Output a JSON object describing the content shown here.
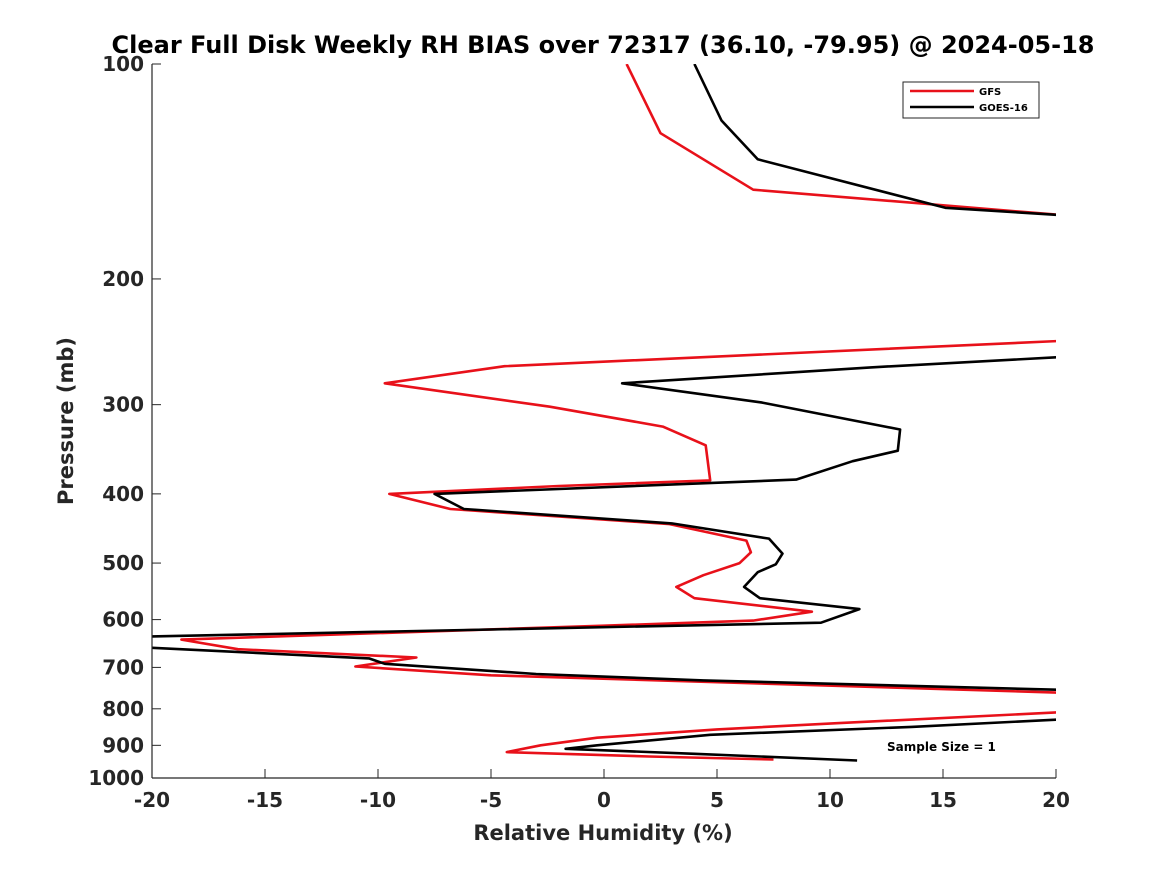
{
  "chart_data": {
    "type": "line",
    "title": "Clear Full Disk Weekly RH BIAS over 72317 (36.10, -79.95) @ 2024-05-18",
    "xlabel": "Relative Humidity (%)",
    "ylabel": "Pressure (mb)",
    "xlim": [
      -20,
      20
    ],
    "ylim": [
      100,
      1000
    ],
    "yscale": "log",
    "y_reversed": true,
    "grid": false,
    "legend_position": "top-right",
    "x_ticks": [
      "-20",
      "-15",
      "-10",
      "-5",
      "0",
      "5",
      "10",
      "15",
      "20"
    ],
    "y_ticks": [
      "100",
      "200",
      "300",
      "400",
      "500",
      "600",
      "700",
      "800",
      "900",
      "1000"
    ],
    "annotation": "Sample Size = 1",
    "series": [
      {
        "name": "GFS",
        "color": "#e8111a",
        "points": [
          [
            1.0,
            100
          ],
          [
            2.5,
            125
          ],
          [
            6.6,
            150
          ],
          [
            20.5,
            163
          ],
          [
            20.5,
            244
          ],
          [
            -4.4,
            265
          ],
          [
            -9.7,
            280
          ],
          [
            -2.4,
            302
          ],
          [
            2.6,
            322
          ],
          [
            4.5,
            342
          ],
          [
            4.7,
            383
          ],
          [
            -2.0,
            390
          ],
          [
            -9.5,
            400
          ],
          [
            -6.8,
            420
          ],
          [
            2.9,
            441
          ],
          [
            6.3,
            465
          ],
          [
            6.5,
            483
          ],
          [
            6.0,
            500
          ],
          [
            4.4,
            520
          ],
          [
            3.2,
            540
          ],
          [
            4.0,
            560
          ],
          [
            9.2,
            585
          ],
          [
            6.6,
            602
          ],
          [
            0,
            612
          ],
          [
            -18.7,
            640
          ],
          [
            -16.2,
            660
          ],
          [
            -8.3,
            678
          ],
          [
            -11.0,
            698
          ],
          [
            -5.0,
            718
          ],
          [
            20.5,
            760
          ],
          [
            20.5,
            808
          ],
          [
            10.3,
            838
          ],
          [
            5.0,
            855
          ],
          [
            -0.3,
            878
          ],
          [
            -2.8,
            900
          ],
          [
            -4.3,
            920
          ],
          [
            2.0,
            933
          ],
          [
            7.5,
            942
          ]
        ]
      },
      {
        "name": "GOES-16",
        "color": "#000000",
        "points": [
          [
            4.0,
            100
          ],
          [
            5.2,
            120
          ],
          [
            6.8,
            136
          ],
          [
            15.1,
            159
          ],
          [
            20.5,
            163
          ],
          [
            20.5,
            257
          ],
          [
            11.8,
            266
          ],
          [
            0.8,
            280
          ],
          [
            7.0,
            298
          ],
          [
            13.1,
            325
          ],
          [
            13.0,
            348
          ],
          [
            11.0,
            360
          ],
          [
            8.5,
            382
          ],
          [
            -7.5,
            400
          ],
          [
            -6.2,
            420
          ],
          [
            3.0,
            440
          ],
          [
            7.3,
            462
          ],
          [
            7.9,
            485
          ],
          [
            7.6,
            502
          ],
          [
            6.8,
            515
          ],
          [
            6.2,
            540
          ],
          [
            6.9,
            560
          ],
          [
            11.3,
            580
          ],
          [
            9.6,
            606
          ],
          [
            -20.5,
            634
          ],
          [
            -20.5,
            656
          ],
          [
            -10.4,
            680
          ],
          [
            -9.7,
            692
          ],
          [
            -3.0,
            715
          ],
          [
            4.4,
            730
          ],
          [
            20.5,
            753
          ],
          [
            20.5,
            827
          ],
          [
            13.6,
            848
          ],
          [
            4.7,
            870
          ],
          [
            -0.3,
            900
          ],
          [
            -1.7,
            910
          ],
          [
            4.0,
            925
          ],
          [
            11.2,
            945
          ]
        ]
      }
    ]
  }
}
